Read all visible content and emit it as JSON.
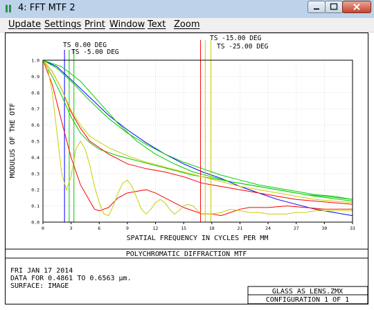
{
  "window": {
    "title": "4: FFT MTF 2",
    "titlebar_color": "#bcd3ea"
  },
  "menu": {
    "items": [
      {
        "label": "Update"
      },
      {
        "label": "Settings"
      },
      {
        "label": "Print"
      },
      {
        "label": "Window"
      },
      {
        "label": "Text"
      },
      {
        "label": "Zoom"
      }
    ]
  },
  "plot": {
    "ylabel": "MODULUS OF THE OTF",
    "xlabel": "SPATIAL FREQUENCY IN CYCLES PER MM",
    "title": "POLYCHROMATIC DIFFRACTION MTF",
    "field_labels": [
      "TS 0.00 DEG",
      "TS -5.00 DEG",
      "TS -15.00 DEG",
      "TS -25.00 DEG"
    ],
    "info_lines": [
      "FRI JAN 17 2014",
      "DATA FOR 0.4861 TO 0.6563 µm.",
      "SURFACE: IMAGE"
    ],
    "file_box": {
      "filename": "GLASS_AS_LENS.ZMX",
      "config": "CONFIGURATION 1 OF 1"
    }
  },
  "chart_data": {
    "type": "line",
    "title": "POLYCHROMATIC DIFFRACTION MTF",
    "xlabel": "SPATIAL FREQUENCY IN CYCLES PER MM",
    "ylabel": "MODULUS OF THE OTF",
    "xlim": [
      0,
      33
    ],
    "ylim": [
      0,
      1.0
    ],
    "x_ticks": [
      "0",
      "3",
      "6",
      "9",
      "12",
      "15",
      "18",
      "21",
      "24",
      "27",
      "30",
      "33"
    ],
    "y_ticks": [
      "0.0",
      "0.1",
      "0.2",
      "0.3",
      "0.4",
      "0.5",
      "0.6",
      "0.7",
      "0.8",
      "0.9",
      "1.0"
    ],
    "grid": true,
    "legend": "markers-top",
    "colors": {
      "blue": "#0000ff",
      "green": "#00cc00",
      "red": "#ff0000",
      "yellow": "#cccc00"
    },
    "series": [
      {
        "name": "TS 0.00 DEG",
        "color": "#0000ff",
        "marker_x": [
          2.3
        ],
        "points": [
          [
            0,
            1.0
          ],
          [
            1.5,
            0.96
          ],
          [
            3,
            0.88
          ],
          [
            5,
            0.77
          ],
          [
            7,
            0.66
          ],
          [
            9,
            0.57
          ],
          [
            11,
            0.49
          ],
          [
            13,
            0.42
          ],
          [
            15,
            0.36
          ],
          [
            17,
            0.31
          ],
          [
            19,
            0.27
          ],
          [
            21,
            0.22
          ],
          [
            23,
            0.18
          ],
          [
            25,
            0.14
          ],
          [
            27,
            0.11
          ],
          [
            29,
            0.08
          ],
          [
            31,
            0.06
          ],
          [
            33,
            0.04
          ]
        ]
      },
      {
        "name": "TS 0.00 DEG",
        "color": "#00cc00",
        "marker_x": [
          2.8
        ],
        "points": [
          [
            0,
            1.0
          ],
          [
            1.5,
            0.95
          ],
          [
            3,
            0.87
          ],
          [
            5,
            0.75
          ],
          [
            7,
            0.64
          ],
          [
            9,
            0.55
          ],
          [
            11,
            0.48
          ],
          [
            13,
            0.42
          ],
          [
            15,
            0.37
          ],
          [
            17,
            0.33
          ],
          [
            19,
            0.29
          ],
          [
            21,
            0.26
          ],
          [
            23,
            0.23
          ],
          [
            25,
            0.21
          ],
          [
            27,
            0.19
          ],
          [
            29,
            0.17
          ],
          [
            31,
            0.16
          ],
          [
            33,
            0.14
          ]
        ]
      },
      {
        "name": "TS -5.00 DEG",
        "color": "#00cc00",
        "marker_x": [
          3.3
        ],
        "points": [
          [
            0,
            1.0
          ],
          [
            1,
            0.9
          ],
          [
            2,
            0.78
          ],
          [
            3,
            0.65
          ],
          [
            4,
            0.55
          ],
          [
            5,
            0.49
          ],
          [
            6,
            0.45
          ],
          [
            8,
            0.41
          ],
          [
            10,
            0.38
          ],
          [
            12,
            0.35
          ],
          [
            14,
            0.32
          ],
          [
            16,
            0.29
          ],
          [
            18,
            0.27
          ],
          [
            20,
            0.25
          ],
          [
            23,
            0.22
          ],
          [
            26,
            0.19
          ],
          [
            29,
            0.16
          ],
          [
            33,
            0.13
          ]
        ]
      },
      {
        "name": "TS -5.00 DEG",
        "color": "#00cc00",
        "marker_x": [],
        "points": [
          [
            0,
            1.0
          ],
          [
            2,
            0.96
          ],
          [
            4,
            0.87
          ],
          [
            6,
            0.74
          ],
          [
            8,
            0.61
          ],
          [
            10,
            0.5
          ],
          [
            12,
            0.42
          ],
          [
            14,
            0.36
          ],
          [
            16,
            0.31
          ],
          [
            18,
            0.28
          ],
          [
            20,
            0.25
          ],
          [
            22,
            0.23
          ],
          [
            24,
            0.21
          ],
          [
            26,
            0.19
          ],
          [
            28,
            0.17
          ],
          [
            30,
            0.16
          ],
          [
            33,
            0.14
          ]
        ]
      },
      {
        "name": "TS -15.00 DEG",
        "color": "#ff0000",
        "marker_x": [
          16.8
        ],
        "points": [
          [
            0,
            1.0
          ],
          [
            1,
            0.85
          ],
          [
            2,
            0.62
          ],
          [
            3,
            0.4
          ],
          [
            4,
            0.23
          ],
          [
            5,
            0.13
          ],
          [
            5.5,
            0.08
          ],
          [
            6,
            0.07
          ],
          [
            7,
            0.09
          ],
          [
            8,
            0.15
          ],
          [
            9,
            0.18
          ],
          [
            10,
            0.19
          ],
          [
            11,
            0.2
          ],
          [
            12,
            0.18
          ],
          [
            13,
            0.15
          ],
          [
            14,
            0.12
          ],
          [
            15,
            0.09
          ],
          [
            16,
            0.07
          ],
          [
            17,
            0.05
          ],
          [
            18,
            0.05
          ],
          [
            19,
            0.04
          ],
          [
            20,
            0.06
          ],
          [
            21,
            0.08
          ],
          [
            22,
            0.09
          ],
          [
            24,
            0.09
          ],
          [
            26,
            0.1
          ],
          [
            28,
            0.09
          ],
          [
            30,
            0.08
          ],
          [
            33,
            0.08
          ]
        ]
      },
      {
        "name": "TS -15.00 DEG",
        "color": "#ff0000",
        "marker_x": [],
        "points": [
          [
            0,
            1.0
          ],
          [
            1,
            0.93
          ],
          [
            2,
            0.82
          ],
          [
            3,
            0.68
          ],
          [
            4,
            0.58
          ],
          [
            5,
            0.5
          ],
          [
            7,
            0.42
          ],
          [
            9,
            0.36
          ],
          [
            11,
            0.33
          ],
          [
            13,
            0.31
          ],
          [
            15,
            0.28
          ],
          [
            17,
            0.24
          ],
          [
            19,
            0.22
          ],
          [
            21,
            0.2
          ],
          [
            23,
            0.18
          ],
          [
            25,
            0.16
          ],
          [
            27,
            0.14
          ],
          [
            29,
            0.13
          ],
          [
            31,
            0.12
          ],
          [
            33,
            0.11
          ]
        ]
      },
      {
        "name": "TS -25.00 DEG",
        "color": "#cccc00",
        "marker_x": [
          17.3,
          17.9
        ],
        "points": [
          [
            0,
            1.0
          ],
          [
            0.5,
            0.95
          ],
          [
            1,
            0.8
          ],
          [
            1.5,
            0.55
          ],
          [
            2,
            0.3
          ],
          [
            2.5,
            0.2
          ],
          [
            3,
            0.28
          ],
          [
            3.5,
            0.45
          ],
          [
            4,
            0.5
          ],
          [
            4.5,
            0.45
          ],
          [
            5,
            0.35
          ],
          [
            5.5,
            0.22
          ],
          [
            6,
            0.12
          ],
          [
            6.5,
            0.05
          ],
          [
            7,
            0.04
          ],
          [
            7.5,
            0.1
          ],
          [
            8,
            0.18
          ],
          [
            8.5,
            0.24
          ],
          [
            9,
            0.26
          ],
          [
            9.5,
            0.22
          ],
          [
            10,
            0.15
          ],
          [
            10.5,
            0.08
          ],
          [
            11,
            0.05
          ],
          [
            11.5,
            0.08
          ],
          [
            12,
            0.12
          ],
          [
            12.5,
            0.14
          ],
          [
            13,
            0.12
          ],
          [
            13.5,
            0.08
          ],
          [
            14,
            0.05
          ],
          [
            14.5,
            0.07
          ],
          [
            15,
            0.1
          ],
          [
            15.5,
            0.11
          ],
          [
            16,
            0.1
          ],
          [
            16.5,
            0.07
          ],
          [
            17,
            0.05
          ],
          [
            18,
            0.05
          ],
          [
            19,
            0.06
          ],
          [
            20,
            0.08
          ],
          [
            21,
            0.07
          ],
          [
            22,
            0.06
          ],
          [
            23,
            0.06
          ],
          [
            24,
            0.05
          ],
          [
            25,
            0.05
          ],
          [
            26,
            0.05
          ],
          [
            27,
            0.06
          ],
          [
            28,
            0.06
          ],
          [
            29,
            0.07
          ],
          [
            30,
            0.07
          ],
          [
            31,
            0.07
          ],
          [
            32,
            0.07
          ],
          [
            33,
            0.07
          ]
        ]
      },
      {
        "name": "TS -25.00 DEG",
        "color": "#cccc00",
        "marker_x": [],
        "points": [
          [
            0,
            1.0
          ],
          [
            1,
            0.93
          ],
          [
            2,
            0.82
          ],
          [
            3,
            0.69
          ],
          [
            4,
            0.6
          ],
          [
            5,
            0.53
          ],
          [
            7,
            0.46
          ],
          [
            9,
            0.41
          ],
          [
            11,
            0.37
          ],
          [
            13,
            0.34
          ],
          [
            15,
            0.31
          ],
          [
            17,
            0.28
          ],
          [
            19,
            0.25
          ],
          [
            21,
            0.22
          ],
          [
            23,
            0.2
          ],
          [
            25,
            0.18
          ],
          [
            27,
            0.16
          ],
          [
            29,
            0.14
          ],
          [
            31,
            0.13
          ],
          [
            33,
            0.12
          ]
        ]
      }
    ]
  }
}
